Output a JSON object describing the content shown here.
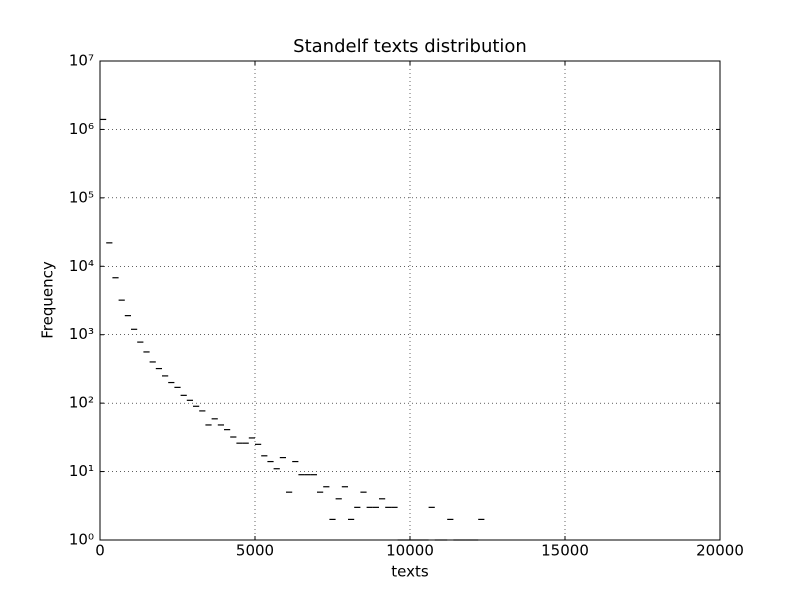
{
  "chart_data": {
    "type": "histogram",
    "title": "Standelf texts distribution",
    "x_label": "texts",
    "y_label": "Frequency",
    "bins": [
      0,
      200,
      400,
      600,
      800,
      1000,
      1200,
      1400,
      1600,
      1800,
      2000,
      2200,
      2400,
      2600,
      2800,
      3000,
      3200,
      3400,
      3600,
      3800,
      4000,
      4200,
      4400,
      4600,
      4800,
      5000,
      5200,
      5400,
      5600,
      5800,
      6000,
      6200,
      6400,
      6600,
      6800,
      7000,
      7200,
      7400,
      7600,
      7800,
      8000,
      8200,
      8400,
      8600,
      8800,
      9000,
      9200,
      9400,
      9600,
      9800,
      10000,
      10200,
      10400,
      10600,
      10800,
      11000,
      11200,
      11400,
      11600,
      11800,
      12000,
      12200,
      12400
    ],
    "counts": [
      1400000,
      22000,
      6800,
      3200,
      1900,
      1200,
      780,
      560,
      400,
      320,
      250,
      200,
      170,
      130,
      110,
      90,
      77,
      48,
      59,
      48,
      41,
      32,
      26,
      26,
      31,
      25,
      17,
      14,
      11,
      16,
      5,
      14,
      9,
      9,
      9,
      5,
      6,
      2,
      4,
      6,
      2,
      3,
      5,
      3,
      3,
      4,
      3,
      3,
      1,
      1,
      1,
      1,
      1,
      3,
      1,
      1,
      2,
      1,
      1,
      1,
      1,
      2
    ],
    "color": "#000000",
    "histtype": "step",
    "xlim": [
      0,
      20000
    ],
    "xticks": [
      0,
      5000,
      10000,
      15000,
      20000
    ],
    "ylim": [
      1,
      10000000
    ],
    "log_y": true,
    "yticks": [
      {
        "value": 1,
        "label": "10⁰"
      },
      {
        "value": 10,
        "label": "10¹"
      },
      {
        "value": 100,
        "label": "10²"
      },
      {
        "value": 1000,
        "label": "10³"
      },
      {
        "value": 10000,
        "label": "10⁴"
      },
      {
        "value": 100000,
        "label": "10⁵"
      },
      {
        "value": 1000000,
        "label": "10⁶"
      },
      {
        "value": 10000000,
        "label": "10⁷"
      }
    ],
    "grid": true
  }
}
